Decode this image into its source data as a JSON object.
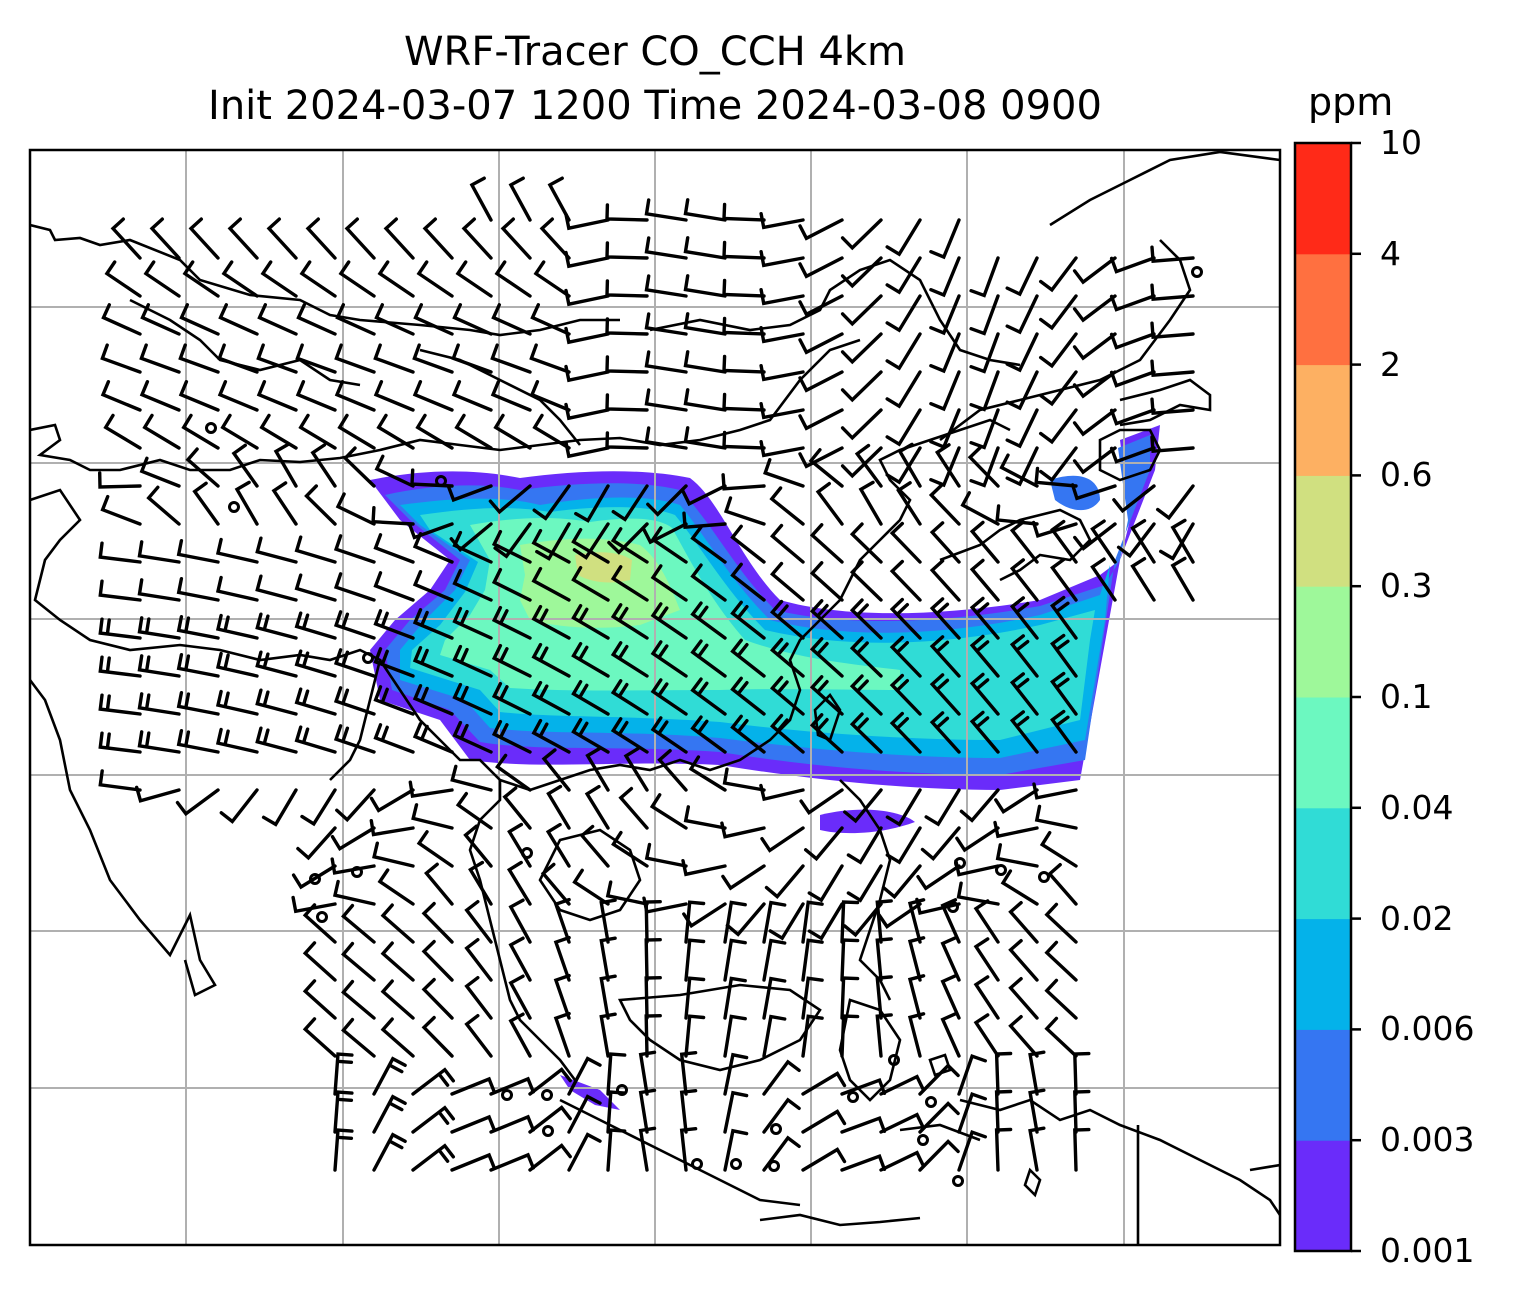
{
  "title": "WRF-Tracer CO_CCH 4km",
  "subtitle": "Init 2024-03-07 1200 Time 2024-03-08 0900",
  "colorbar": {
    "unit": "ppm",
    "levels": [
      "0.001",
      "0.003",
      "0.006",
      "0.02",
      "0.04",
      "0.1",
      "0.3",
      "0.6",
      "2",
      "4",
      "10"
    ],
    "colors": [
      "#6a2cfa",
      "#3576f2",
      "#04b2ea",
      "#30dcd6",
      "#6cf8c0",
      "#9ef89a",
      "#d0e080",
      "#fdb062",
      "#ff7040",
      "#ff2a18"
    ]
  },
  "map": {
    "gridlines": true,
    "coastline_color": "#000000",
    "gridline_color": "#b0b0b0",
    "overlay": "wind barbs"
  }
}
